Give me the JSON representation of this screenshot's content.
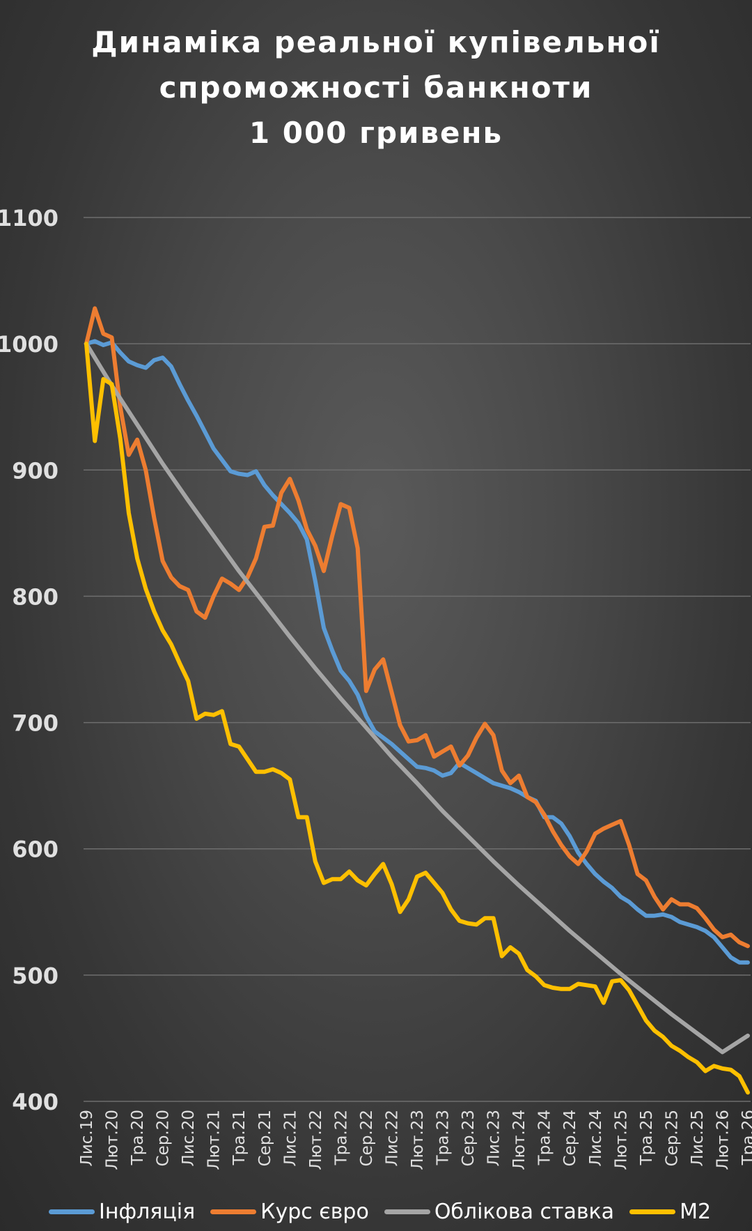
{
  "chart_data": {
    "type": "line",
    "title_lines": [
      "Динаміка реальної купівельної",
      "спроможності банкноти",
      "1 000 гривень"
    ],
    "xlabel": "",
    "ylabel": "",
    "ylim": [
      400,
      1100
    ],
    "yticks": [
      400,
      500,
      600,
      700,
      800,
      900,
      1000,
      1100
    ],
    "xlim": [
      0,
      78
    ],
    "grid": true,
    "legend_position": "bottom",
    "x_tick_labels": [
      "Лис.19",
      "Лют.20",
      "Тра.20",
      "Сер.20",
      "Лис.20",
      "Лют.21",
      "Тра.21",
      "Сер.21",
      "Лис.21",
      "Лют.22",
      "Тра.22",
      "Сер.22",
      "Лис.22",
      "Лют.23",
      "Тра.23",
      "Сер.23",
      "Лис.23",
      "Лют.24",
      "Тра.24",
      "Сер.24",
      "Лис.24",
      "Лют.25",
      "Тра.25",
      "Сер.25",
      "Лис.25",
      "Лют.26",
      "Тра.26"
    ],
    "x_tick_positions": [
      0,
      3,
      6,
      9,
      12,
      15,
      18,
      21,
      24,
      27,
      30,
      33,
      36,
      39,
      42,
      45,
      48,
      51,
      54,
      57,
      60,
      63,
      66,
      69,
      72,
      75,
      78
    ],
    "series": [
      {
        "name": "Інфляція",
        "color": "#5b9bd5",
        "points": [
          [
            0,
            1000
          ],
          [
            1,
            1002
          ],
          [
            2,
            999
          ],
          [
            3,
            1001
          ],
          [
            4,
            993
          ],
          [
            5,
            986
          ],
          [
            6,
            983
          ],
          [
            7,
            981
          ],
          [
            8,
            987
          ],
          [
            9,
            989
          ],
          [
            10,
            982
          ],
          [
            11,
            968
          ],
          [
            12,
            955
          ],
          [
            13,
            943
          ],
          [
            14,
            930
          ],
          [
            15,
            917
          ],
          [
            16,
            908
          ],
          [
            17,
            899
          ],
          [
            18,
            897
          ],
          [
            19,
            896
          ],
          [
            20,
            899
          ],
          [
            21,
            888
          ],
          [
            22,
            880
          ],
          [
            23,
            873
          ],
          [
            24,
            866
          ],
          [
            25,
            858
          ],
          [
            26,
            845
          ],
          [
            27,
            812
          ],
          [
            28,
            775
          ],
          [
            29,
            757
          ],
          [
            30,
            741
          ],
          [
            31,
            733
          ],
          [
            32,
            722
          ],
          [
            33,
            705
          ],
          [
            34,
            693
          ],
          [
            35,
            688
          ],
          [
            36,
            683
          ],
          [
            37,
            677
          ],
          [
            38,
            671
          ],
          [
            39,
            665
          ],
          [
            40,
            664
          ],
          [
            41,
            662
          ],
          [
            42,
            658
          ],
          [
            43,
            660
          ],
          [
            44,
            668
          ],
          [
            45,
            664
          ],
          [
            46,
            660
          ],
          [
            47,
            656
          ],
          [
            48,
            652
          ],
          [
            49,
            650
          ],
          [
            50,
            648
          ],
          [
            51,
            645
          ],
          [
            52,
            641
          ],
          [
            53,
            638
          ],
          [
            54,
            625
          ],
          [
            55,
            625
          ],
          [
            56,
            620
          ],
          [
            57,
            610
          ],
          [
            58,
            597
          ],
          [
            59,
            588
          ],
          [
            60,
            580
          ],
          [
            61,
            574
          ],
          [
            62,
            569
          ],
          [
            63,
            562
          ],
          [
            64,
            558
          ],
          [
            65,
            552
          ],
          [
            66,
            547
          ],
          [
            67,
            547
          ],
          [
            68,
            548
          ],
          [
            69,
            546
          ],
          [
            70,
            542
          ],
          [
            71,
            540
          ],
          [
            72,
            538
          ],
          [
            73,
            535
          ],
          [
            74,
            530
          ],
          [
            75,
            522
          ],
          [
            76,
            514
          ],
          [
            77,
            510
          ],
          [
            78,
            510
          ]
        ]
      },
      {
        "name": "Курс євро",
        "color": "#ed7d31",
        "points": [
          [
            0,
            1000
          ],
          [
            1,
            1028
          ],
          [
            2,
            1008
          ],
          [
            3,
            1005
          ],
          [
            4,
            950
          ],
          [
            5,
            912
          ],
          [
            6,
            924
          ],
          [
            7,
            900
          ],
          [
            8,
            862
          ],
          [
            9,
            828
          ],
          [
            10,
            815
          ],
          [
            11,
            808
          ],
          [
            12,
            805
          ],
          [
            13,
            788
          ],
          [
            14,
            783
          ],
          [
            15,
            800
          ],
          [
            16,
            814
          ],
          [
            17,
            810
          ],
          [
            18,
            805
          ],
          [
            19,
            815
          ],
          [
            20,
            830
          ],
          [
            21,
            855
          ],
          [
            22,
            856
          ],
          [
            23,
            882
          ],
          [
            24,
            893
          ],
          [
            25,
            876
          ],
          [
            26,
            853
          ],
          [
            27,
            840
          ],
          [
            28,
            820
          ],
          [
            29,
            848
          ],
          [
            30,
            873
          ],
          [
            31,
            870
          ],
          [
            32,
            838
          ],
          [
            33,
            725
          ],
          [
            34,
            742
          ],
          [
            35,
            750
          ],
          [
            36,
            724
          ],
          [
            37,
            698
          ],
          [
            38,
            685
          ],
          [
            39,
            686
          ],
          [
            40,
            690
          ],
          [
            41,
            673
          ],
          [
            42,
            677
          ],
          [
            43,
            681
          ],
          [
            44,
            666
          ],
          [
            45,
            674
          ],
          [
            46,
            688
          ],
          [
            47,
            699
          ],
          [
            48,
            690
          ],
          [
            49,
            662
          ],
          [
            50,
            652
          ],
          [
            51,
            658
          ],
          [
            52,
            641
          ],
          [
            53,
            637
          ],
          [
            54,
            627
          ],
          [
            55,
            614
          ],
          [
            56,
            603
          ],
          [
            57,
            594
          ],
          [
            58,
            588
          ],
          [
            59,
            598
          ],
          [
            60,
            612
          ],
          [
            61,
            616
          ],
          [
            62,
            619
          ],
          [
            63,
            622
          ],
          [
            64,
            603
          ],
          [
            65,
            580
          ],
          [
            66,
            575
          ],
          [
            67,
            562
          ],
          [
            68,
            552
          ],
          [
            69,
            560
          ],
          [
            70,
            556
          ],
          [
            71,
            556
          ],
          [
            72,
            553
          ],
          [
            73,
            545
          ],
          [
            74,
            536
          ],
          [
            75,
            530
          ],
          [
            76,
            532
          ],
          [
            77,
            526
          ],
          [
            78,
            523
          ]
        ]
      },
      {
        "name": "Облікова ставка",
        "color": "#a5a5a5",
        "points": [
          [
            0,
            1000
          ],
          [
            3,
            967
          ],
          [
            6,
            936
          ],
          [
            9,
            905
          ],
          [
            12,
            876
          ],
          [
            15,
            848
          ],
          [
            18,
            820
          ],
          [
            21,
            794
          ],
          [
            24,
            768
          ],
          [
            27,
            743
          ],
          [
            30,
            719
          ],
          [
            33,
            696
          ],
          [
            36,
            673
          ],
          [
            39,
            652
          ],
          [
            42,
            630
          ],
          [
            45,
            610
          ],
          [
            48,
            590
          ],
          [
            51,
            571
          ],
          [
            54,
            553
          ],
          [
            57,
            535
          ],
          [
            60,
            518
          ],
          [
            63,
            501
          ],
          [
            66,
            485
          ],
          [
            69,
            469
          ],
          [
            72,
            454
          ],
          [
            75,
            439
          ],
          [
            78,
            452
          ]
        ]
      },
      {
        "name": "М2",
        "color": "#ffc000",
        "points": [
          [
            0,
            1000
          ],
          [
            1,
            923
          ],
          [
            2,
            972
          ],
          [
            3,
            968
          ],
          [
            4,
            925
          ],
          [
            5,
            866
          ],
          [
            6,
            830
          ],
          [
            7,
            806
          ],
          [
            8,
            788
          ],
          [
            9,
            773
          ],
          [
            10,
            762
          ],
          [
            11,
            747
          ],
          [
            12,
            733
          ],
          [
            13,
            703
          ],
          [
            14,
            707
          ],
          [
            15,
            706
          ],
          [
            16,
            709
          ],
          [
            17,
            683
          ],
          [
            18,
            681
          ],
          [
            19,
            671
          ],
          [
            20,
            661
          ],
          [
            21,
            661
          ],
          [
            22,
            663
          ],
          [
            23,
            660
          ],
          [
            24,
            655
          ],
          [
            25,
            625
          ],
          [
            26,
            625
          ],
          [
            27,
            590
          ],
          [
            28,
            573
          ],
          [
            29,
            576
          ],
          [
            30,
            576
          ],
          [
            31,
            582
          ],
          [
            32,
            575
          ],
          [
            33,
            571
          ],
          [
            34,
            580
          ],
          [
            35,
            588
          ],
          [
            36,
            572
          ],
          [
            37,
            550
          ],
          [
            38,
            560
          ],
          [
            39,
            578
          ],
          [
            40,
            581
          ],
          [
            41,
            573
          ],
          [
            42,
            565
          ],
          [
            43,
            552
          ],
          [
            44,
            543
          ],
          [
            45,
            541
          ],
          [
            46,
            540
          ],
          [
            47,
            545
          ],
          [
            48,
            545
          ],
          [
            49,
            515
          ],
          [
            50,
            522
          ],
          [
            51,
            517
          ],
          [
            52,
            504
          ],
          [
            53,
            499
          ],
          [
            54,
            492
          ],
          [
            55,
            490
          ],
          [
            56,
            489
          ],
          [
            57,
            489
          ],
          [
            58,
            493
          ],
          [
            59,
            492
          ],
          [
            60,
            491
          ],
          [
            61,
            478
          ],
          [
            62,
            495
          ],
          [
            63,
            496
          ],
          [
            64,
            488
          ],
          [
            65,
            476
          ],
          [
            66,
            464
          ],
          [
            67,
            456
          ],
          [
            68,
            451
          ],
          [
            69,
            444
          ],
          [
            70,
            440
          ],
          [
            71,
            435
          ],
          [
            72,
            431
          ],
          [
            73,
            424
          ],
          [
            74,
            428
          ],
          [
            75,
            426
          ],
          [
            76,
            425
          ],
          [
            77,
            420
          ],
          [
            78,
            407
          ]
        ]
      }
    ]
  }
}
